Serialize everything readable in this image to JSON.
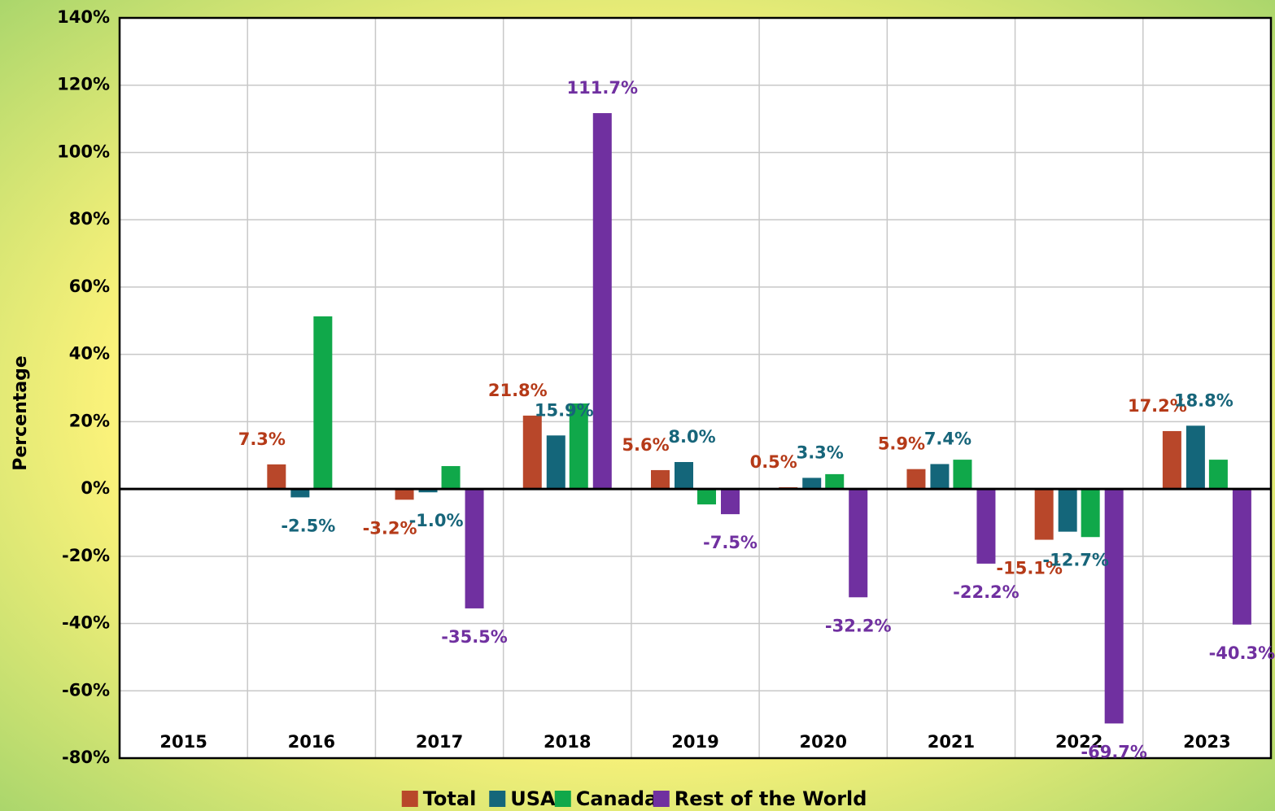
{
  "chart_data": {
    "type": "bar",
    "y_label": "Percentage",
    "categories": [
      "2015",
      "2016",
      "2017",
      "2018",
      "2019",
      "2020",
      "2021",
      "2022",
      "2023"
    ],
    "series": [
      {
        "name": "Total",
        "color": "#b8472a",
        "label_color": "#b53a18",
        "values": [
          null,
          7.3,
          -3.2,
          21.8,
          5.6,
          0.5,
          5.9,
          -15.1,
          17.2
        ],
        "value_labels": [
          null,
          "7.3%",
          "-3.2%",
          "21.8%",
          "5.6%",
          "0.5%",
          "5.9%",
          "-15.1%",
          "17.2%"
        ]
      },
      {
        "name": "USA",
        "color": "#14667a",
        "label_color": "#17657a",
        "values": [
          null,
          -2.5,
          -1.0,
          15.9,
          8.0,
          3.3,
          7.4,
          -12.7,
          18.8
        ],
        "value_labels": [
          null,
          "-2.5%",
          "-1.0%",
          "15.9%",
          "8.0%",
          "3.3%",
          "7.4%",
          "-12.7%",
          "18.8%"
        ]
      },
      {
        "name": "Canada",
        "color": "#10a84a",
        "values": [
          null,
          51.3,
          6.8,
          25.4,
          -4.6,
          4.4,
          8.7,
          -14.3,
          8.7
        ]
      },
      {
        "name": "Rest of the World",
        "color": "#7030a0",
        "label_color": "#7030a0",
        "values": [
          null,
          null,
          -35.5,
          111.7,
          -7.5,
          -32.2,
          -22.2,
          -69.7,
          -40.3
        ],
        "value_labels": [
          null,
          null,
          "-35.5%",
          "111.7%",
          "-7.5%",
          "-32.2%",
          "-22.2%",
          "-69.7%",
          "-40.3%"
        ]
      }
    ],
    "ylim": [
      -80,
      140
    ],
    "yticks": [
      {
        "value": -80,
        "label": "-80%"
      },
      {
        "value": -60,
        "label": "-60%"
      },
      {
        "value": -40,
        "label": "-40%"
      },
      {
        "value": -20,
        "label": "-20%"
      },
      {
        "value": 0,
        "label": "0%"
      },
      {
        "value": 20,
        "label": "20%"
      },
      {
        "value": 40,
        "label": "40%"
      },
      {
        "value": 60,
        "label": "60%"
      },
      {
        "value": 80,
        "label": "80%"
      },
      {
        "value": 100,
        "label": "100%"
      },
      {
        "value": 120,
        "label": "120%"
      },
      {
        "value": 140,
        "label": "140%"
      }
    ],
    "grid": true,
    "legend": "bottom"
  }
}
